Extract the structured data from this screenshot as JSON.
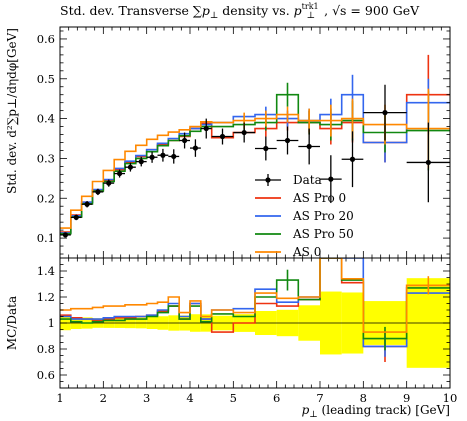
{
  "chart_data": {
    "type": "line",
    "title": "Std. dev. Transverse ∑p⊥ density vs. p⊥trk1, √s = 900 GeV",
    "title_parts": {
      "t1": "Std. dev. Transverse ∑",
      "t2": "p",
      "t3": "⊥",
      "t4": " density vs. ",
      "t5": "p",
      "t6": "trk1",
      "t7": "⊥",
      "t8": ", √s = 900 GeV"
    },
    "xlabel": "p⊥ (leading track) [GeV]",
    "xlabel_parts": {
      "p": "p",
      "perp": "⊥",
      "rest": " (leading track) [GeV]"
    },
    "ylabel": "Std. dev. d²∑p⊥/dηdφ[GeV]",
    "ratio_ylabel": "MC/Data",
    "xlim": [
      1,
      10
    ],
    "ylim": [
      0.05,
      0.63
    ],
    "ratio_ylim": [
      0.5,
      1.5
    ],
    "x_ticks": [
      "1",
      "2",
      "3",
      "4",
      "5",
      "6",
      "7",
      "8",
      "9",
      "10"
    ],
    "y_ticks": [
      "0.1",
      "0.2",
      "0.3",
      "0.4",
      "0.5",
      "0.6"
    ],
    "ratio_ticks": [
      "0.6",
      "0.8",
      "1",
      "1.2",
      "1.4"
    ],
    "bin_edges": [
      1.0,
      1.25,
      1.5,
      1.75,
      2.0,
      2.25,
      2.5,
      2.75,
      3.0,
      3.25,
      3.5,
      3.75,
      4.0,
      4.25,
      4.5,
      5.0,
      5.5,
      6.0,
      6.5,
      7.0,
      7.5,
      8.0,
      9.0,
      10.0
    ],
    "data": {
      "name": "Data",
      "color": "#000000",
      "values": [
        0.108,
        0.152,
        0.185,
        0.216,
        0.238,
        0.262,
        0.278,
        0.292,
        0.303,
        0.308,
        0.305,
        0.345,
        0.326,
        0.375,
        0.355,
        0.365,
        0.325,
        0.345,
        0.33,
        0.248,
        0.298,
        0.415,
        0.29
      ],
      "errors": [
        0.006,
        0.007,
        0.008,
        0.008,
        0.009,
        0.01,
        0.011,
        0.012,
        0.014,
        0.016,
        0.018,
        0.02,
        0.022,
        0.025,
        0.02,
        0.025,
        0.03,
        0.035,
        0.045,
        0.06,
        0.07,
        0.07,
        0.1
      ]
    },
    "series": [
      {
        "name": "AS Pro 0",
        "color": "#ee3311",
        "values": [
          0.115,
          0.158,
          0.19,
          0.22,
          0.245,
          0.272,
          0.29,
          0.305,
          0.322,
          0.335,
          0.345,
          0.355,
          0.375,
          0.388,
          0.352,
          0.365,
          0.375,
          0.39,
          0.39,
          0.375,
          0.39,
          0.34,
          0.46
        ],
        "ratio": [
          1.06,
          1.04,
          1.03,
          1.02,
          1.03,
          1.04,
          1.04,
          1.05,
          1.06,
          1.09,
          1.13,
          1.03,
          1.15,
          1.03,
          0.93,
          1.0,
          1.15,
          1.13,
          1.18,
          1.51,
          1.31,
          0.82,
          1.29
        ],
        "ratio_err": [
          0,
          0,
          0,
          0,
          0,
          0,
          0,
          0,
          0,
          0,
          0,
          0,
          0,
          0,
          0,
          0,
          0,
          0,
          0,
          0,
          0,
          0.12,
          0
        ],
        "mc_err": [
          0,
          0,
          0,
          0,
          0,
          0,
          0,
          0,
          0,
          0,
          0,
          0,
          0,
          0,
          0,
          0,
          0.02,
          0.02,
          0.03,
          0.04,
          0.05,
          0.05,
          0.1
        ]
      },
      {
        "name": "AS Pro 20",
        "color": "#3366ee",
        "values": [
          0.113,
          0.156,
          0.19,
          0.222,
          0.247,
          0.275,
          0.293,
          0.307,
          0.322,
          0.338,
          0.35,
          0.362,
          0.375,
          0.385,
          0.39,
          0.405,
          0.41,
          0.4,
          0.395,
          0.41,
          0.46,
          0.34,
          0.44
        ],
        "ratio": [
          1.05,
          1.03,
          1.03,
          1.03,
          1.04,
          1.05,
          1.05,
          1.05,
          1.06,
          1.1,
          1.15,
          1.05,
          1.15,
          1.03,
          1.1,
          1.11,
          1.26,
          1.16,
          1.2,
          1.65,
          1.54,
          0.82,
          1.23
        ],
        "ratio_err": [
          0,
          0,
          0,
          0,
          0,
          0,
          0,
          0,
          0,
          0,
          0,
          0,
          0,
          0,
          0,
          0,
          0,
          0,
          0,
          0,
          0,
          0.08,
          0
        ],
        "mc_err": [
          0,
          0,
          0,
          0,
          0,
          0,
          0,
          0,
          0,
          0,
          0,
          0,
          0,
          0,
          0,
          0,
          0.02,
          0.02,
          0.03,
          0.04,
          0.05,
          0.05,
          0.06
        ]
      },
      {
        "name": "AS Pro 50",
        "color": "#118811",
        "values": [
          0.111,
          0.153,
          0.186,
          0.218,
          0.242,
          0.268,
          0.287,
          0.3,
          0.317,
          0.332,
          0.345,
          0.357,
          0.368,
          0.38,
          0.38,
          0.385,
          0.39,
          0.46,
          0.39,
          0.385,
          0.395,
          0.365,
          0.37
        ],
        "ratio": [
          1.03,
          1.01,
          1.0,
          1.01,
          1.02,
          1.02,
          1.03,
          1.03,
          1.05,
          1.08,
          1.13,
          1.03,
          1.13,
          1.01,
          1.07,
          1.05,
          1.2,
          1.33,
          1.18,
          1.55,
          1.33,
          0.88,
          1.27
        ],
        "ratio_err": [
          0,
          0,
          0,
          0,
          0,
          0,
          0,
          0,
          0,
          0,
          0,
          0,
          0,
          0,
          0,
          0,
          0,
          0.08,
          0,
          0,
          0,
          0.09,
          0
        ],
        "mc_err": [
          0,
          0,
          0,
          0,
          0,
          0,
          0,
          0,
          0,
          0,
          0,
          0,
          0,
          0,
          0,
          0.02,
          0.02,
          0.03,
          0.03,
          0.04,
          0.05,
          0.05,
          0.1
        ]
      },
      {
        "name": "AS 0",
        "color": "#ff8800",
        "values": [
          0.125,
          0.17,
          0.205,
          0.242,
          0.27,
          0.297,
          0.318,
          0.333,
          0.348,
          0.358,
          0.366,
          0.372,
          0.38,
          0.392,
          0.39,
          0.395,
          0.4,
          0.41,
          0.395,
          0.395,
          0.4,
          0.385,
          0.375
        ],
        "ratio": [
          1.1,
          1.11,
          1.11,
          1.12,
          1.13,
          1.13,
          1.14,
          1.14,
          1.15,
          1.16,
          1.2,
          1.08,
          1.17,
          1.05,
          1.1,
          1.08,
          1.23,
          1.19,
          1.2,
          1.59,
          1.34,
          0.93,
          1.29
        ],
        "ratio_err": [
          0,
          0,
          0,
          0,
          0,
          0,
          0,
          0,
          0,
          0,
          0,
          0,
          0,
          0,
          0,
          0,
          0,
          0,
          0,
          0,
          0,
          0,
          0.07
        ],
        "mc_err": [
          0,
          0,
          0,
          0,
          0,
          0,
          0,
          0,
          0,
          0,
          0,
          0,
          0,
          0,
          0,
          0.02,
          0.02,
          0.02,
          0.03,
          0.04,
          0.05,
          0.05,
          0.1
        ]
      }
    ],
    "legend": [
      "Data",
      "AS Pro 0",
      "AS Pro 20",
      "AS Pro 50",
      "AS 0"
    ],
    "legend_placement": "lower-right",
    "ratio_band_color": "#ffff00",
    "grid": false
  }
}
